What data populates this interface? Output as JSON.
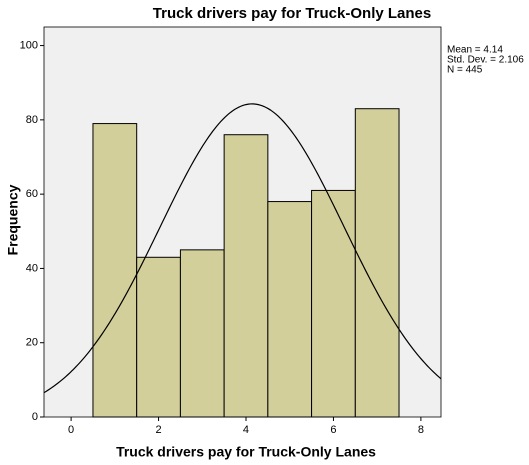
{
  "chart_data": {
    "type": "histogram",
    "title": "Truck drivers pay for Truck-Only Lanes",
    "xlabel": "Truck drivers pay for Truck-Only Lanes",
    "ylabel": "Frequency",
    "bins": [
      0.5,
      1.5,
      2.5,
      3.5,
      4.5,
      5.5,
      6.5,
      7.5
    ],
    "values": [
      79,
      43,
      45,
      76,
      58,
      61,
      83
    ],
    "color": "#d3cf9b",
    "xlim": [
      -0.62,
      8.46
    ],
    "xticks": [
      0,
      2,
      4,
      6,
      8
    ],
    "ylim": [
      0,
      105
    ],
    "yticks": [
      0,
      20,
      40,
      60,
      80,
      100
    ],
    "grid": false,
    "normal_curve": true,
    "stats": [
      {
        "value": 4.14,
        "label": "Mean = 4.14"
      },
      {
        "value": 2.106,
        "label": "Std. Dev. = 2.106"
      },
      {
        "value": 445,
        "label": "N = 445"
      }
    ]
  }
}
